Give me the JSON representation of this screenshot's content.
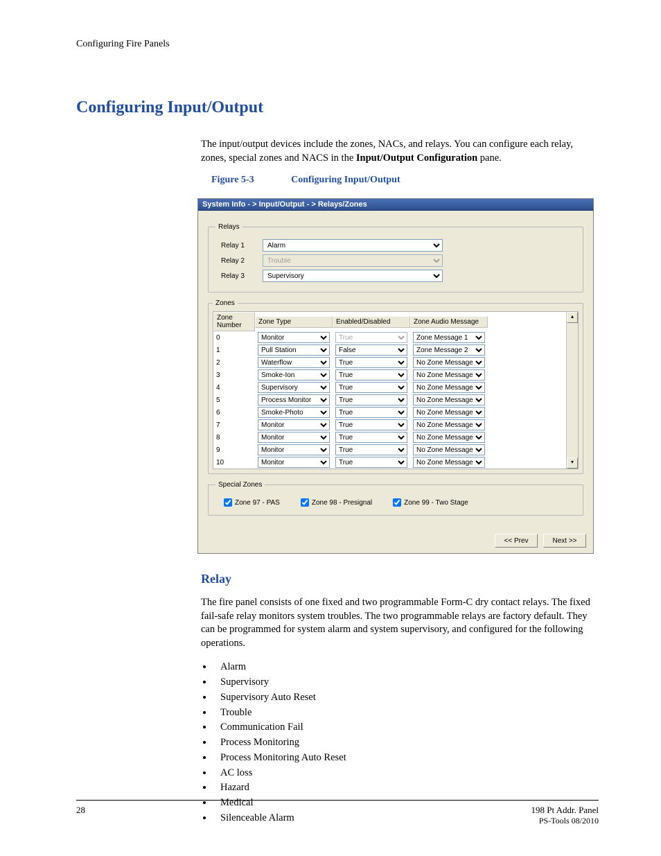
{
  "header": {
    "text": "Configuring Fire Panels"
  },
  "h1": "Configuring Input/Output",
  "intro": {
    "line1": "The input/output devices include the zones, NACs, and relays. You can configure each relay, zones, special zones and NACS in the ",
    "bold": "Input/Output Configuration",
    "line2": " pane."
  },
  "figure": {
    "num": "Figure 5-3",
    "title": "Configuring Input/Output"
  },
  "shot": {
    "title": "System Info  - > Input/Output - > Relays/Zones",
    "relays_legend": "Relays",
    "relays": [
      {
        "label": "Relay 1",
        "value": "Alarm",
        "disabled": false
      },
      {
        "label": "Relay 2",
        "value": "Trouble",
        "disabled": true
      },
      {
        "label": "Relay 3",
        "value": "Supervisory",
        "disabled": false
      }
    ],
    "zones_legend": "Zones",
    "zones_cols": [
      "Zone Number",
      "Zone Type",
      "Enabled/Disabled",
      "Zone Audio Message"
    ],
    "zones_rows": [
      {
        "num": "0",
        "type": "Monitor",
        "enabled": "True",
        "enabled_disabled": true,
        "audio": "Zone Message 1"
      },
      {
        "num": "1",
        "type": "Pull Station",
        "enabled": "False",
        "enabled_disabled": false,
        "audio": "Zone Message 2"
      },
      {
        "num": "2",
        "type": "Waterflow",
        "enabled": "True",
        "enabled_disabled": false,
        "audio": "No Zone Message"
      },
      {
        "num": "3",
        "type": "Smoke-Ion",
        "enabled": "True",
        "enabled_disabled": false,
        "audio": "No Zone Message"
      },
      {
        "num": "4",
        "type": "Supervisory",
        "enabled": "True",
        "enabled_disabled": false,
        "audio": "No Zone Message"
      },
      {
        "num": "5",
        "type": "Process Monitor",
        "enabled": "True",
        "enabled_disabled": false,
        "audio": "No Zone Message"
      },
      {
        "num": "6",
        "type": "Smoke-Photo",
        "enabled": "True",
        "enabled_disabled": false,
        "audio": "No Zone Message"
      },
      {
        "num": "7",
        "type": "Monitor",
        "enabled": "True",
        "enabled_disabled": false,
        "audio": "No Zone Message"
      },
      {
        "num": "8",
        "type": "Monitor",
        "enabled": "True",
        "enabled_disabled": false,
        "audio": "No Zone Message"
      },
      {
        "num": "9",
        "type": "Monitor",
        "enabled": "True",
        "enabled_disabled": false,
        "audio": "No Zone Message"
      },
      {
        "num": "10",
        "type": "Monitor",
        "enabled": "True",
        "enabled_disabled": false,
        "audio": "No Zone Message"
      }
    ],
    "special_legend": "Special Zones",
    "special": [
      {
        "label": "Zone 97 - PAS",
        "checked": true
      },
      {
        "label": "Zone 98 - Presignal",
        "checked": true
      },
      {
        "label": "Zone 99 - Two Stage",
        "checked": true
      }
    ],
    "prev": "<< Prev",
    "next": "Next >>"
  },
  "relay_h2": "Relay",
  "relay_para": "The fire panel consists of one fixed and two programmable Form-C dry contact relays. The fixed fail-safe relay monitors system troubles. The two programmable relays are factory default. They can be programmed for system alarm and system supervisory, and configured for the following operations.",
  "ops": [
    "Alarm",
    "Supervisory",
    "Supervisory Auto Reset",
    "Trouble",
    "Communication Fail",
    "Process Monitoring",
    "Process Monitoring Auto Reset",
    "AC loss",
    "Hazard",
    "Medical",
    "Silenceable Alarm"
  ],
  "footer": {
    "page": "28",
    "right1": "198 Pt Addr. Panel",
    "right2": "PS-Tools  08/2010"
  }
}
